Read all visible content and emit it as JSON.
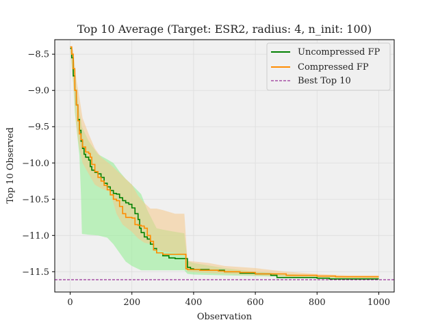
{
  "chart_data": {
    "type": "line",
    "title": "Top 10 Average (Target: ESR2, radius: 4, n_init: 100)",
    "xlabel": "Observation",
    "ylabel": "Top 10 Observed",
    "xlim": [
      -50,
      1050
    ],
    "ylim": [
      -11.78,
      -8.3
    ],
    "xticks": [
      0,
      200,
      400,
      600,
      800,
      1000
    ],
    "yticks": [
      -8.5,
      -9.0,
      -9.5,
      -10.0,
      -10.5,
      -11.0,
      -11.5
    ],
    "xtick_labels": [
      "0",
      "200",
      "400",
      "600",
      "800",
      "1000"
    ],
    "ytick_labels": [
      "−8.5",
      "−9.0",
      "−9.5",
      "−10.0",
      "−10.5",
      "−11.0",
      "−11.5"
    ],
    "grid": true,
    "legend_position": "top-right",
    "background": "#f0f0f0",
    "series": [
      {
        "name": "Uncompressed FP",
        "color": "#008000",
        "band_color": "#90ee90",
        "points": [
          [
            0,
            -8.42
          ],
          [
            5,
            -8.55
          ],
          [
            10,
            -8.8
          ],
          [
            15,
            -9.0
          ],
          [
            20,
            -9.2
          ],
          [
            25,
            -9.4
          ],
          [
            30,
            -9.55
          ],
          [
            35,
            -9.7
          ],
          [
            40,
            -9.8
          ],
          [
            45,
            -9.88
          ],
          [
            50,
            -9.92
          ],
          [
            60,
            -9.96
          ],
          [
            65,
            -10.05
          ],
          [
            70,
            -10.1
          ],
          [
            80,
            -10.13
          ],
          [
            90,
            -10.15
          ],
          [
            100,
            -10.2
          ],
          [
            110,
            -10.28
          ],
          [
            120,
            -10.33
          ],
          [
            130,
            -10.38
          ],
          [
            140,
            -10.42
          ],
          [
            150,
            -10.43
          ],
          [
            160,
            -10.48
          ],
          [
            170,
            -10.52
          ],
          [
            180,
            -10.55
          ],
          [
            190,
            -10.57
          ],
          [
            200,
            -10.62
          ],
          [
            210,
            -10.7
          ],
          [
            220,
            -10.78
          ],
          [
            225,
            -10.9
          ],
          [
            230,
            -10.96
          ],
          [
            240,
            -11.02
          ],
          [
            250,
            -11.05
          ],
          [
            260,
            -11.12
          ],
          [
            270,
            -11.18
          ],
          [
            280,
            -11.24
          ],
          [
            300,
            -11.28
          ],
          [
            320,
            -11.31
          ],
          [
            340,
            -11.32
          ],
          [
            370,
            -11.32
          ],
          [
            380,
            -11.44
          ],
          [
            390,
            -11.46
          ],
          [
            400,
            -11.47
          ],
          [
            450,
            -11.48
          ],
          [
            500,
            -11.5
          ],
          [
            550,
            -11.52
          ],
          [
            600,
            -11.53
          ],
          [
            650,
            -11.55
          ],
          [
            670,
            -11.58
          ],
          [
            700,
            -11.58
          ],
          [
            800,
            -11.59
          ],
          [
            840,
            -11.6
          ],
          [
            900,
            -11.6
          ],
          [
            1000,
            -11.6
          ]
        ],
        "band": [
          [
            0,
            -8.45,
            -8.4
          ],
          [
            10,
            -8.9,
            -8.5
          ],
          [
            15,
            -9.3,
            -8.7
          ],
          [
            20,
            -9.5,
            -9.0
          ],
          [
            30,
            -9.9,
            -9.3
          ],
          [
            35,
            -10.45,
            -9.4
          ],
          [
            38,
            -10.98,
            -9.5
          ],
          [
            60,
            -10.99,
            -9.7
          ],
          [
            90,
            -11.0,
            -9.88
          ],
          [
            120,
            -11.03,
            -9.95
          ],
          [
            140,
            -11.12,
            -10.0
          ],
          [
            160,
            -11.24,
            -10.12
          ],
          [
            180,
            -11.36,
            -10.22
          ],
          [
            200,
            -11.42,
            -10.3
          ],
          [
            230,
            -11.48,
            -10.43
          ],
          [
            250,
            -11.48,
            -10.65
          ],
          [
            280,
            -11.48,
            -10.9
          ],
          [
            300,
            -11.48,
            -10.92
          ],
          [
            340,
            -11.48,
            -10.95
          ],
          [
            370,
            -11.48,
            -10.97
          ],
          [
            380,
            -11.53,
            -11.35
          ],
          [
            400,
            -11.54,
            -11.38
          ],
          [
            500,
            -11.55,
            -11.45
          ],
          [
            600,
            -11.56,
            -11.5
          ],
          [
            700,
            -11.57,
            -11.53
          ],
          [
            800,
            -11.59,
            -11.55
          ],
          [
            900,
            -11.6,
            -11.57
          ],
          [
            1000,
            -11.6,
            -11.58
          ]
        ]
      },
      {
        "name": "Compressed FP",
        "color": "#ff8c00",
        "band_color": "#f5c98a",
        "points": [
          [
            0,
            -8.4
          ],
          [
            5,
            -8.5
          ],
          [
            10,
            -8.7
          ],
          [
            15,
            -9.0
          ],
          [
            20,
            -9.2
          ],
          [
            25,
            -9.42
          ],
          [
            30,
            -9.6
          ],
          [
            35,
            -9.68
          ],
          [
            40,
            -9.78
          ],
          [
            50,
            -9.85
          ],
          [
            60,
            -9.87
          ],
          [
            65,
            -9.92
          ],
          [
            70,
            -10.02
          ],
          [
            80,
            -10.12
          ],
          [
            90,
            -10.2
          ],
          [
            100,
            -10.25
          ],
          [
            110,
            -10.31
          ],
          [
            120,
            -10.37
          ],
          [
            130,
            -10.44
          ],
          [
            140,
            -10.5
          ],
          [
            150,
            -10.52
          ],
          [
            160,
            -10.6
          ],
          [
            170,
            -10.7
          ],
          [
            180,
            -10.75
          ],
          [
            200,
            -10.76
          ],
          [
            210,
            -10.85
          ],
          [
            220,
            -10.86
          ],
          [
            230,
            -10.87
          ],
          [
            240,
            -10.9
          ],
          [
            250,
            -11.0
          ],
          [
            260,
            -11.08
          ],
          [
            270,
            -11.2
          ],
          [
            280,
            -11.24
          ],
          [
            300,
            -11.26
          ],
          [
            360,
            -11.26
          ],
          [
            375,
            -11.46
          ],
          [
            380,
            -11.47
          ],
          [
            420,
            -11.48
          ],
          [
            480,
            -11.49
          ],
          [
            500,
            -11.5
          ],
          [
            550,
            -11.51
          ],
          [
            600,
            -11.53
          ],
          [
            700,
            -11.55
          ],
          [
            800,
            -11.56
          ],
          [
            860,
            -11.57
          ],
          [
            900,
            -11.57
          ],
          [
            1000,
            -11.57
          ]
        ],
        "band": [
          [
            0,
            -8.45,
            -8.38
          ],
          [
            10,
            -8.9,
            -8.45
          ],
          [
            20,
            -9.5,
            -8.85
          ],
          [
            30,
            -9.8,
            -9.1
          ],
          [
            40,
            -10.0,
            -9.38
          ],
          [
            60,
            -10.15,
            -9.6
          ],
          [
            80,
            -10.3,
            -9.8
          ],
          [
            100,
            -10.35,
            -9.92
          ],
          [
            130,
            -10.4,
            -10.02
          ],
          [
            150,
            -10.7,
            -10.1
          ],
          [
            170,
            -10.85,
            -10.18
          ],
          [
            200,
            -10.95,
            -10.3
          ],
          [
            220,
            -11.04,
            -10.45
          ],
          [
            240,
            -11.1,
            -10.55
          ],
          [
            260,
            -11.12,
            -10.63
          ],
          [
            280,
            -11.18,
            -10.63
          ],
          [
            300,
            -11.22,
            -10.65
          ],
          [
            340,
            -11.24,
            -10.7
          ],
          [
            370,
            -11.26,
            -10.7
          ],
          [
            380,
            -11.5,
            -11.35
          ],
          [
            450,
            -11.52,
            -11.38
          ],
          [
            500,
            -11.53,
            -11.42
          ],
          [
            600,
            -11.55,
            -11.45
          ],
          [
            700,
            -11.57,
            -11.5
          ],
          [
            800,
            -11.58,
            -11.53
          ],
          [
            900,
            -11.59,
            -11.55
          ],
          [
            1000,
            -11.59,
            -11.55
          ]
        ]
      }
    ],
    "reference_line": {
      "name": "Best Top 10",
      "y": -11.61,
      "color": "#800080"
    }
  }
}
